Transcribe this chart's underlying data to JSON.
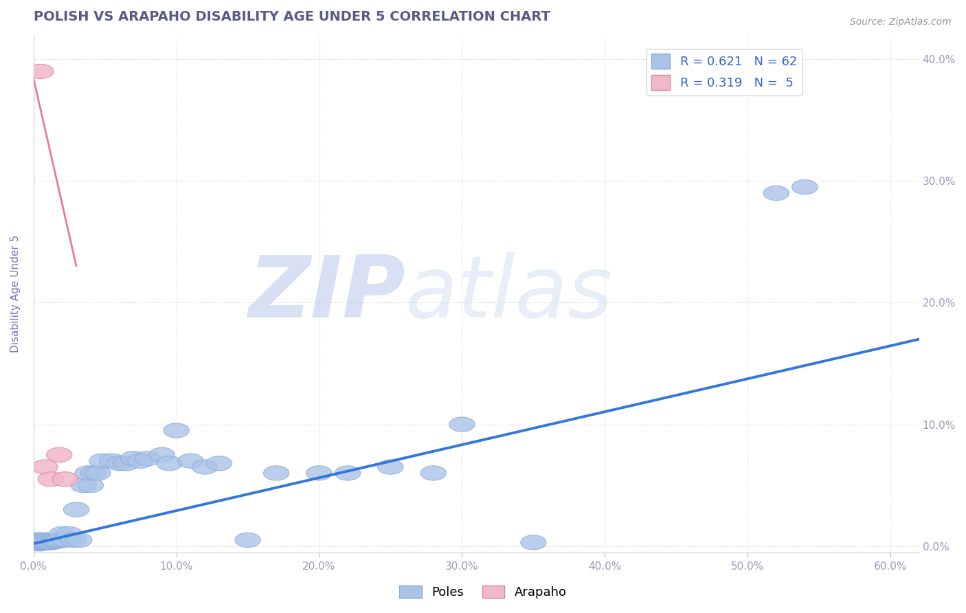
{
  "title": "POLISH VS ARAPAHO DISABILITY AGE UNDER 5 CORRELATION CHART",
  "source": "Source: ZipAtlas.com",
  "ylabel": "Disability Age Under 5",
  "xlim": [
    0.0,
    0.62
  ],
  "ylim": [
    -0.005,
    0.42
  ],
  "xticks": [
    0.0,
    0.1,
    0.2,
    0.3,
    0.4,
    0.5,
    0.6
  ],
  "yticks": [
    0.0,
    0.1,
    0.2,
    0.3,
    0.4
  ],
  "xtick_labels": [
    "0.0%",
    "10.0%",
    "20.0%",
    "30.0%",
    "40.0%",
    "50.0%",
    "60.0%"
  ],
  "ytick_labels": [
    "0.0%",
    "10.0%",
    "20.0%",
    "30.0%",
    "40.0%"
  ],
  "title_color": "#5a5a8a",
  "axis_color": "#7777bb",
  "tick_color": "#9999bb",
  "background_color": "#ffffff",
  "watermark": "ZIPatlas",
  "watermark_color": "#dde5f5",
  "poles_color": "#aac4e8",
  "poles_edge_color": "#88aadd",
  "arapaho_color": "#f0b8c8",
  "arapaho_edge_color": "#dd8899",
  "poles_line_color": "#3377dd",
  "arapaho_line_color": "#ee7799",
  "poles_R": 0.621,
  "poles_N": 62,
  "arapaho_R": 0.319,
  "arapaho_N": 5,
  "legend_R_color": "#3366cc",
  "poles_scatter_x": [
    0.001,
    0.002,
    0.002,
    0.003,
    0.003,
    0.004,
    0.004,
    0.005,
    0.005,
    0.005,
    0.006,
    0.006,
    0.007,
    0.007,
    0.008,
    0.008,
    0.009,
    0.009,
    0.01,
    0.01,
    0.011,
    0.012,
    0.013,
    0.014,
    0.015,
    0.016,
    0.017,
    0.018,
    0.02,
    0.022,
    0.025,
    0.028,
    0.03,
    0.032,
    0.035,
    0.038,
    0.04,
    0.042,
    0.045,
    0.048,
    0.055,
    0.06,
    0.065,
    0.07,
    0.075,
    0.08,
    0.09,
    0.095,
    0.1,
    0.11,
    0.12,
    0.13,
    0.15,
    0.17,
    0.2,
    0.22,
    0.25,
    0.28,
    0.3,
    0.35,
    0.52,
    0.54
  ],
  "poles_scatter_y": [
    0.002,
    0.003,
    0.004,
    0.003,
    0.005,
    0.002,
    0.004,
    0.002,
    0.003,
    0.005,
    0.003,
    0.004,
    0.003,
    0.005,
    0.003,
    0.004,
    0.003,
    0.005,
    0.003,
    0.004,
    0.003,
    0.004,
    0.003,
    0.004,
    0.004,
    0.005,
    0.004,
    0.005,
    0.01,
    0.005,
    0.01,
    0.005,
    0.03,
    0.005,
    0.05,
    0.06,
    0.05,
    0.06,
    0.06,
    0.07,
    0.07,
    0.068,
    0.068,
    0.072,
    0.07,
    0.072,
    0.075,
    0.068,
    0.095,
    0.07,
    0.065,
    0.068,
    0.005,
    0.06,
    0.06,
    0.06,
    0.065,
    0.06,
    0.1,
    0.003,
    0.29,
    0.295
  ],
  "arapaho_scatter_x": [
    0.005,
    0.008,
    0.012,
    0.018,
    0.022
  ],
  "arapaho_scatter_y": [
    0.39,
    0.065,
    0.055,
    0.075,
    0.055
  ],
  "poles_trendline_x": [
    0.0,
    0.62
  ],
  "poles_trendline_y": [
    0.002,
    0.17
  ],
  "arapaho_trendline_x": [
    -0.005,
    0.03
  ],
  "arapaho_trendline_y": [
    0.41,
    0.23
  ]
}
